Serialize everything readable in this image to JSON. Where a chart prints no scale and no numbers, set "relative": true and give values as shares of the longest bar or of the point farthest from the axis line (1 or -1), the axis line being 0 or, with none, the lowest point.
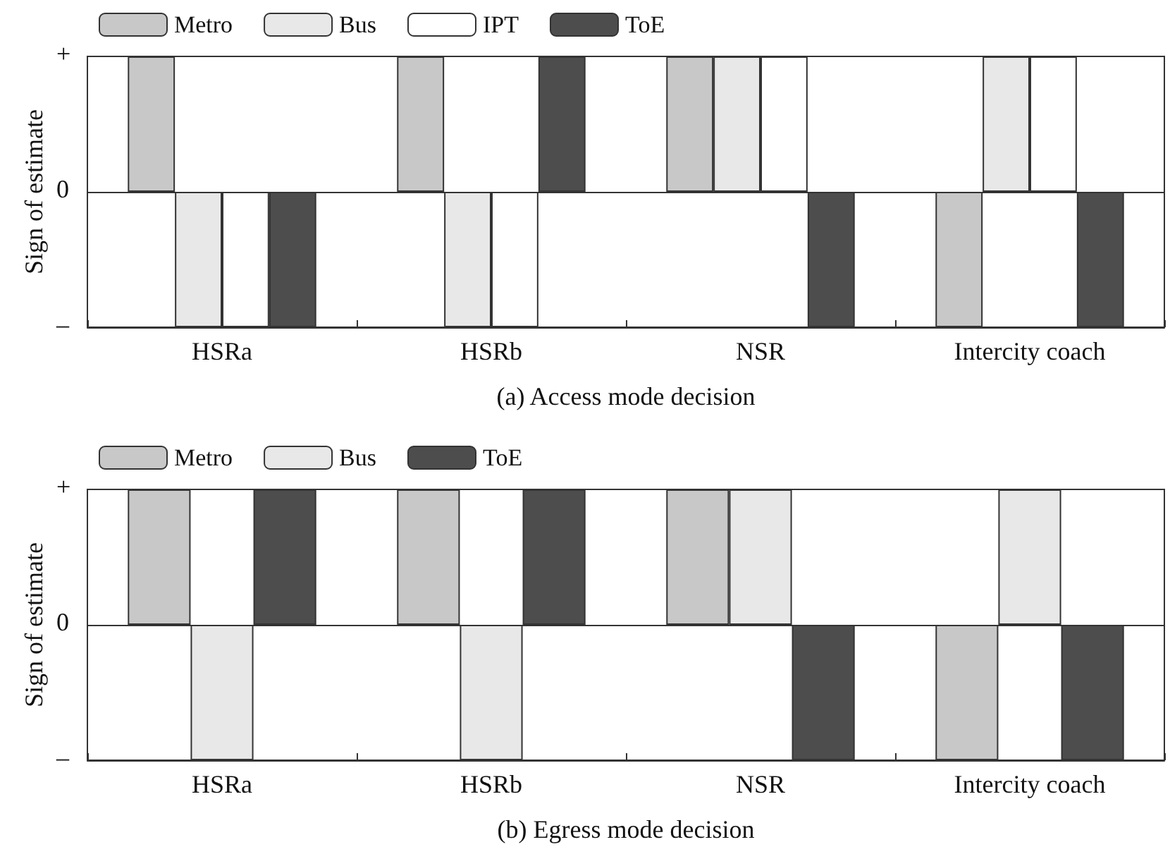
{
  "chart_data": [
    {
      "type": "bar",
      "xlabel": "(a) Access mode decision",
      "ylabel": "Sign of estimate",
      "categories": [
        "HSRa",
        "HSRb",
        "NSR",
        "Intercity coach"
      ],
      "series": [
        {
          "name": "Metro",
          "color": "#c8c8c8",
          "values": [
            1,
            1,
            1,
            -1
          ]
        },
        {
          "name": "Bus",
          "color": "#e8e8e8",
          "values": [
            -1,
            -1,
            1,
            1
          ]
        },
        {
          "name": "IPT",
          "color": "#ffffff",
          "values": [
            -1,
            -1,
            1,
            1
          ]
        },
        {
          "name": "ToE",
          "color": "#4d4d4d",
          "values": [
            -1,
            1,
            -1,
            -1
          ]
        }
      ],
      "relative": true,
      "annotations": [
        "+",
        "0",
        "–"
      ],
      "legend": "top left"
    },
    {
      "type": "bar",
      "xlabel": "(b) Egress mode decision",
      "ylabel": "Sign of estimate",
      "categories": [
        "HSRa",
        "HSRb",
        "NSR",
        "Intercity coach"
      ],
      "series": [
        {
          "name": "Metro",
          "color": "#c8c8c8",
          "values": [
            1,
            1,
            1,
            -1
          ]
        },
        {
          "name": "Bus",
          "color": "#e8e8e8",
          "values": [
            -1,
            -1,
            1,
            1
          ]
        },
        {
          "name": "ToE",
          "color": "#4d4d4d",
          "values": [
            1,
            1,
            -1,
            -1
          ]
        }
      ],
      "relative": true,
      "annotations": [
        "+",
        "0",
        "–"
      ],
      "legend": "top left"
    }
  ]
}
